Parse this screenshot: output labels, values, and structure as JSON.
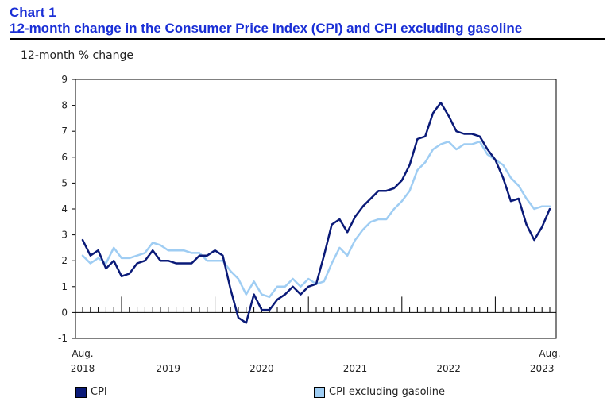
{
  "header": {
    "chart_label": "Chart 1",
    "title": "12-month change in the Consumer Price Index (CPI) and CPI excluding gasoline"
  },
  "colors": {
    "cpi": "#0a1a78",
    "cpi_ex_gas": "#9fcdf3",
    "title": "#1a2fd6"
  },
  "chart_data": {
    "type": "line",
    "title": "12-month change in the Consumer Price Index (CPI) and CPI excluding gasoline",
    "ylabel": "12-month % change",
    "xlabel": "",
    "ylim": [
      -1,
      9
    ],
    "yticks": [
      -1,
      0,
      1,
      2,
      3,
      4,
      5,
      6,
      7,
      8,
      9
    ],
    "x_start_label": {
      "month": "Aug.",
      "year": "2018"
    },
    "x_end_label": {
      "month": "Aug.",
      "year": "2023"
    },
    "year_labels": [
      {
        "label": "2019",
        "index": 11
      },
      {
        "label": "2020",
        "index": 23
      },
      {
        "label": "2021",
        "index": 35
      },
      {
        "label": "2022",
        "index": 47
      },
      {
        "label": "2023",
        "index": 59
      }
    ],
    "months_count": 61,
    "series": [
      {
        "name": "CPI",
        "values": [
          2.8,
          2.2,
          2.4,
          1.7,
          2.0,
          1.4,
          1.5,
          1.9,
          2.0,
          2.4,
          2.0,
          2.0,
          1.9,
          1.9,
          1.9,
          2.2,
          2.2,
          2.4,
          2.2,
          0.9,
          -0.2,
          -0.4,
          0.7,
          0.1,
          0.1,
          0.5,
          0.7,
          1.0,
          0.7,
          1.0,
          1.1,
          2.2,
          3.4,
          3.6,
          3.1,
          3.7,
          4.1,
          4.4,
          4.7,
          4.7,
          4.8,
          5.1,
          5.7,
          6.7,
          6.8,
          7.7,
          8.1,
          7.6,
          7.0,
          6.9,
          6.9,
          6.8,
          6.3,
          5.9,
          5.2,
          4.3,
          4.4,
          3.4,
          2.8,
          3.3,
          4.0
        ]
      },
      {
        "name": "CPI excluding gasoline",
        "values": [
          2.2,
          1.9,
          2.1,
          1.9,
          2.5,
          2.1,
          2.1,
          2.2,
          2.3,
          2.7,
          2.6,
          2.4,
          2.4,
          2.4,
          2.3,
          2.3,
          2.0,
          2.0,
          2.0,
          1.6,
          1.3,
          0.7,
          1.2,
          0.7,
          0.6,
          1.0,
          1.0,
          1.3,
          1.0,
          1.3,
          1.1,
          1.2,
          1.9,
          2.5,
          2.2,
          2.8,
          3.2,
          3.5,
          3.6,
          3.6,
          4.0,
          4.3,
          4.7,
          5.5,
          5.8,
          6.3,
          6.5,
          6.6,
          6.3,
          6.5,
          6.5,
          6.6,
          6.1,
          5.9,
          5.7,
          5.2,
          4.9,
          4.4,
          4.0,
          4.1,
          4.1
        ]
      }
    ],
    "legend": {
      "position": "bottom",
      "items": [
        "CPI",
        "CPI excluding gasoline"
      ]
    }
  }
}
